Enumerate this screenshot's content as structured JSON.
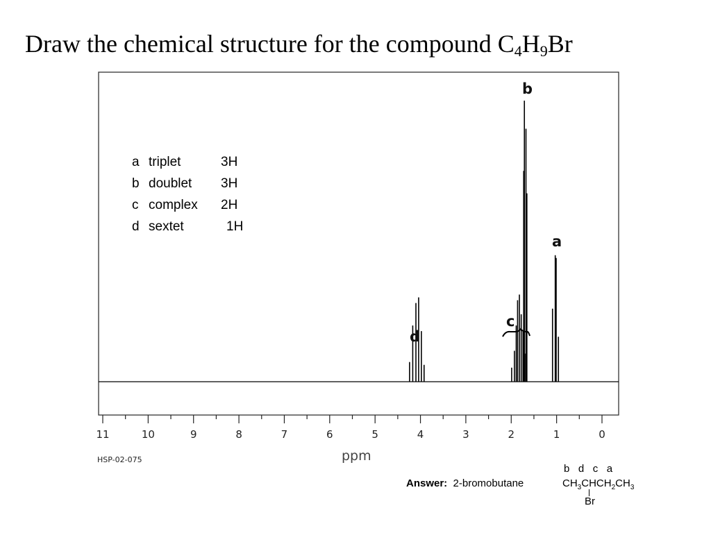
{
  "header": {
    "title_prefix": "Draw the chemical structure for the compound C",
    "sub1": "4",
    "mid": "H",
    "sub2": "9",
    "suffix": "Br"
  },
  "chart_data": {
    "type": "line",
    "title": "",
    "xlabel": "ppm",
    "ylabel": "",
    "xlim": [
      11,
      0
    ],
    "x_tick_labels": [
      "11",
      "10",
      "9",
      "8",
      "7",
      "6",
      "5",
      "4",
      "3",
      "2",
      "1",
      "0"
    ],
    "spectrum_code": "HSP-02-075",
    "peaks": [
      {
        "ppm": 4.24,
        "intensity": 0.07
      },
      {
        "ppm": 4.17,
        "intensity": 0.2
      },
      {
        "ppm": 4.1,
        "intensity": 0.28
      },
      {
        "ppm": 4.04,
        "intensity": 0.3
      },
      {
        "ppm": 3.98,
        "intensity": 0.18
      },
      {
        "ppm": 3.92,
        "intensity": 0.06
      },
      {
        "ppm": 1.99,
        "intensity": 0.05
      },
      {
        "ppm": 1.93,
        "intensity": 0.11
      },
      {
        "ppm": 1.89,
        "intensity": 0.2
      },
      {
        "ppm": 1.86,
        "intensity": 0.29
      },
      {
        "ppm": 1.82,
        "intensity": 0.31
      },
      {
        "ppm": 1.78,
        "intensity": 0.24
      },
      {
        "ppm": 1.74,
        "intensity": 0.18
      },
      {
        "ppm": 1.7,
        "intensity": 0.1
      },
      {
        "ppm": 1.725,
        "intensity": 0.75
      },
      {
        "ppm": 1.71,
        "intensity": 1.0
      },
      {
        "ppm": 1.675,
        "intensity": 0.9
      },
      {
        "ppm": 1.655,
        "intensity": 0.67
      },
      {
        "ppm": 1.09,
        "intensity": 0.26
      },
      {
        "ppm": 1.03,
        "intensity": 0.45
      },
      {
        "ppm": 1.01,
        "intensity": 0.44
      },
      {
        "ppm": 0.96,
        "intensity": 0.16
      }
    ],
    "peak_labels": [
      {
        "text": "b",
        "ppm": 1.7
      },
      {
        "text": "a",
        "ppm": 1.02
      },
      {
        "text": "c",
        "ppm": 1.85
      },
      {
        "text": "d",
        "ppm": 4.07
      }
    ]
  },
  "legend": {
    "rows": [
      {
        "letter": "a",
        "mult": "triplet",
        "h": "3H"
      },
      {
        "letter": "b",
        "mult": "doublet",
        "h": "3H"
      },
      {
        "letter": "c",
        "mult": "complex",
        "h": "2H"
      },
      {
        "letter": "d",
        "mult": "sextet",
        "h": "1H"
      }
    ]
  },
  "answer": {
    "label": "Answer:",
    "name": "2-bromobutane",
    "letters": "b   d   c   a",
    "f1": "CH",
    "f1s": "3",
    "f2": "CHCH",
    "f2s": "2",
    "f3": "CH",
    "f3s": "3",
    "br": "Br"
  },
  "colors": {
    "line": "#000000",
    "frame": "#333333"
  }
}
